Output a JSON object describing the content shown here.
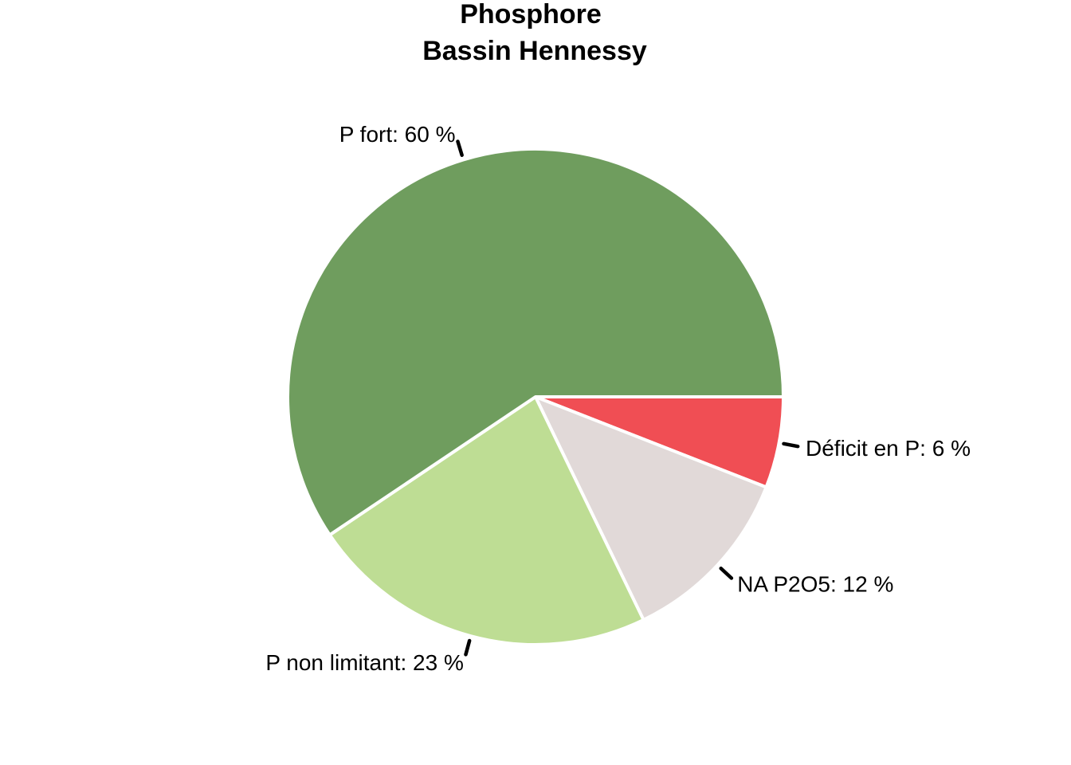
{
  "chart_data": {
    "type": "pie",
    "title": "Phosphore",
    "subtitle": "Bassin Hennessy",
    "slices": [
      {
        "label": "Déficit en P: 6 %",
        "value": 6,
        "color": "#f04e54"
      },
      {
        "label": "NA P2O5: 12 %",
        "value": 12,
        "color": "#e1d9d8"
      },
      {
        "label": "P non limitant: 23 %",
        "value": 23,
        "color": "#bedd94"
      },
      {
        "label": "P fort: 60 %",
        "value": 60,
        "color": "#6f9d5e"
      }
    ],
    "start_angle_deg": 0,
    "direction": "clockwise"
  }
}
